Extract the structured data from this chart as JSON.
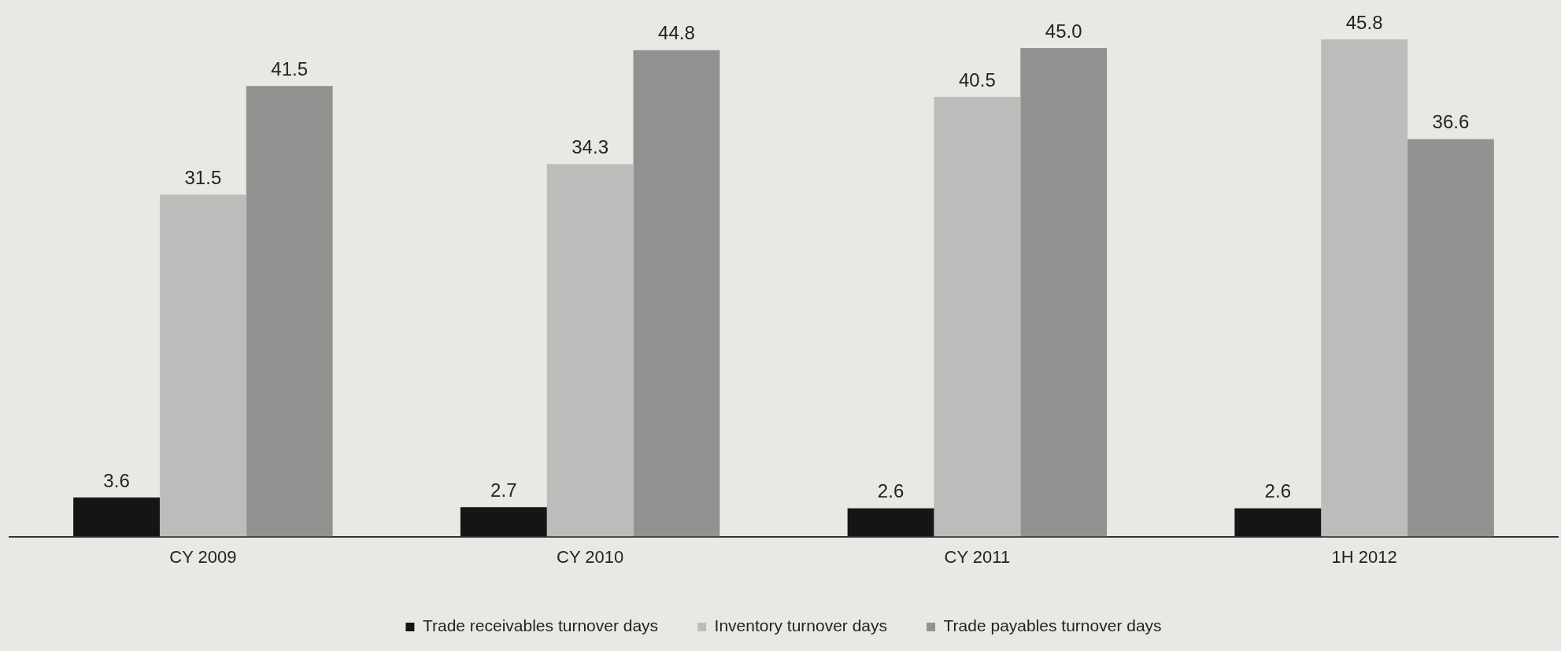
{
  "chart_data": {
    "type": "bar",
    "categories": [
      "CY 2009",
      "CY 2010",
      "CY 2011",
      "1H 2012"
    ],
    "series": [
      {
        "name": "Trade receivables turnover days",
        "color": "#151515",
        "values": [
          3.6,
          2.7,
          2.6,
          2.6
        ],
        "value_labels": [
          "3.6",
          "2.7",
          "2.6",
          "2.6"
        ]
      },
      {
        "name": "Inventory turnover days",
        "color": "#bcbcba",
        "values": [
          31.5,
          34.3,
          40.5,
          45.8
        ],
        "value_labels": [
          "31.5",
          "34.3",
          "40.5",
          "45.8"
        ]
      },
      {
        "name": "Trade payables turnover days",
        "color": "#929290",
        "values": [
          41.5,
          44.8,
          45.0,
          36.6
        ],
        "value_labels": [
          "41.5",
          "44.8",
          "45.0",
          "36.6"
        ]
      }
    ],
    "legend": "bottom",
    "grid": false,
    "tick_labels": "x"
  }
}
